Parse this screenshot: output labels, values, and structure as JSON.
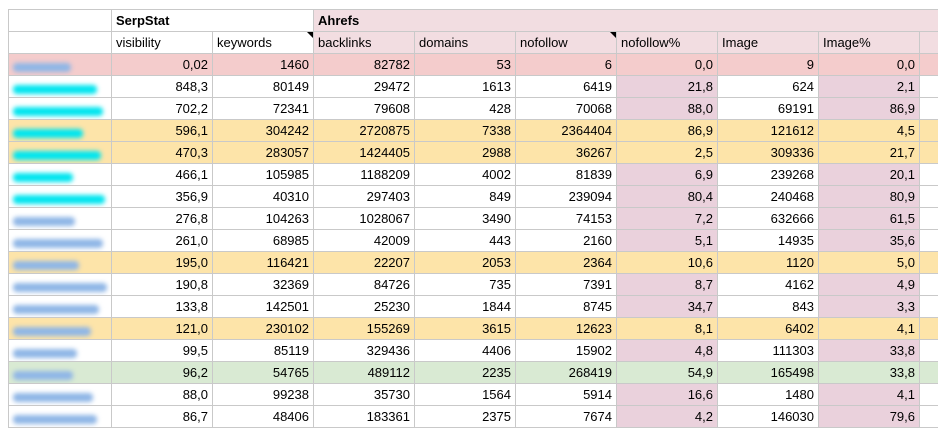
{
  "groups": {
    "serpstat": "SerpStat",
    "ahrefs": "Ahrefs"
  },
  "headers": [
    "visibility",
    "keywords",
    "backlinks",
    "domains",
    "nofollow",
    "nofollow%",
    "Image",
    "Image%"
  ],
  "colors": {
    "row_pink": "#f4cccc",
    "row_yellow": "#fde4a9",
    "row_green": "#d9ead3",
    "percent_col": "#ead1dc",
    "blur_cyan": "#00e5ef",
    "blur_blue": "#8fb6e6"
  },
  "rows": [
    {
      "style": "pink",
      "url_color": "#8fb6e6",
      "url_width": 58,
      "values": [
        "0,02",
        "1460",
        "82782",
        "53",
        "6",
        "0,0",
        "9",
        "0,0"
      ]
    },
    {
      "style": "white",
      "url_color": "#00e5ef",
      "url_width": 84,
      "values": [
        "848,3",
        "80149",
        "29472",
        "1613",
        "6419",
        "21,8",
        "624",
        "2,1"
      ]
    },
    {
      "style": "white",
      "url_color": "#00e5ef",
      "url_width": 90,
      "values": [
        "702,2",
        "72341",
        "79608",
        "428",
        "70068",
        "88,0",
        "69191",
        "86,9"
      ]
    },
    {
      "style": "yellow",
      "url_color": "#00e5ef",
      "url_width": 70,
      "values": [
        "596,1",
        "304242",
        "2720875",
        "7338",
        "2364404",
        "86,9",
        "121612",
        "4,5"
      ]
    },
    {
      "style": "yellow",
      "url_color": "#00e5ef",
      "url_width": 88,
      "values": [
        "470,3",
        "283057",
        "1424405",
        "2988",
        "36267",
        "2,5",
        "309336",
        "21,7"
      ]
    },
    {
      "style": "white",
      "url_color": "#00e5ef",
      "url_width": 60,
      "values": [
        "466,1",
        "105985",
        "1188209",
        "4002",
        "81839",
        "6,9",
        "239268",
        "20,1"
      ]
    },
    {
      "style": "white",
      "url_color": "#00e5ef",
      "url_width": 92,
      "values": [
        "356,9",
        "40310",
        "297403",
        "849",
        "239094",
        "80,4",
        "240468",
        "80,9"
      ]
    },
    {
      "style": "white",
      "url_color": "#8fb6e6",
      "url_width": 62,
      "values": [
        "276,8",
        "104263",
        "1028067",
        "3490",
        "74153",
        "7,2",
        "632666",
        "61,5"
      ]
    },
    {
      "style": "white",
      "url_color": "#8fb6e6",
      "url_width": 90,
      "values": [
        "261,0",
        "68985",
        "42009",
        "443",
        "2160",
        "5,1",
        "14935",
        "35,6"
      ]
    },
    {
      "style": "yellow",
      "url_color": "#8fb6e6",
      "url_width": 66,
      "values": [
        "195,0",
        "116421",
        "22207",
        "2053",
        "2364",
        "10,6",
        "1120",
        "5,0"
      ]
    },
    {
      "style": "white",
      "url_color": "#8fb6e6",
      "url_width": 94,
      "values": [
        "190,8",
        "32369",
        "84726",
        "735",
        "7391",
        "8,7",
        "4162",
        "4,9"
      ]
    },
    {
      "style": "white",
      "url_color": "#8fb6e6",
      "url_width": 86,
      "values": [
        "133,8",
        "142501",
        "25230",
        "1844",
        "8745",
        "34,7",
        "843",
        "3,3"
      ]
    },
    {
      "style": "yellow",
      "url_color": "#8fb6e6",
      "url_width": 78,
      "values": [
        "121,0",
        "230102",
        "155269",
        "3615",
        "12623",
        "8,1",
        "6402",
        "4,1"
      ]
    },
    {
      "style": "white",
      "url_color": "#8fb6e6",
      "url_width": 64,
      "values": [
        "99,5",
        "85119",
        "329436",
        "4406",
        "15902",
        "4,8",
        "111303",
        "33,8"
      ]
    },
    {
      "style": "green",
      "url_color": "#8fb6e6",
      "url_width": 60,
      "values": [
        "96,2",
        "54765",
        "489112",
        "2235",
        "268419",
        "54,9",
        "165498",
        "33,8"
      ]
    },
    {
      "style": "white",
      "url_color": "#8fb6e6",
      "url_width": 80,
      "values": [
        "88,0",
        "99238",
        "35730",
        "1564",
        "5914",
        "16,6",
        "1480",
        "4,1"
      ]
    },
    {
      "style": "white",
      "url_color": "#8fb6e6",
      "url_width": 84,
      "values": [
        "86,7",
        "48406",
        "183361",
        "2375",
        "7674",
        "4,2",
        "146030",
        "79,6"
      ]
    }
  ]
}
